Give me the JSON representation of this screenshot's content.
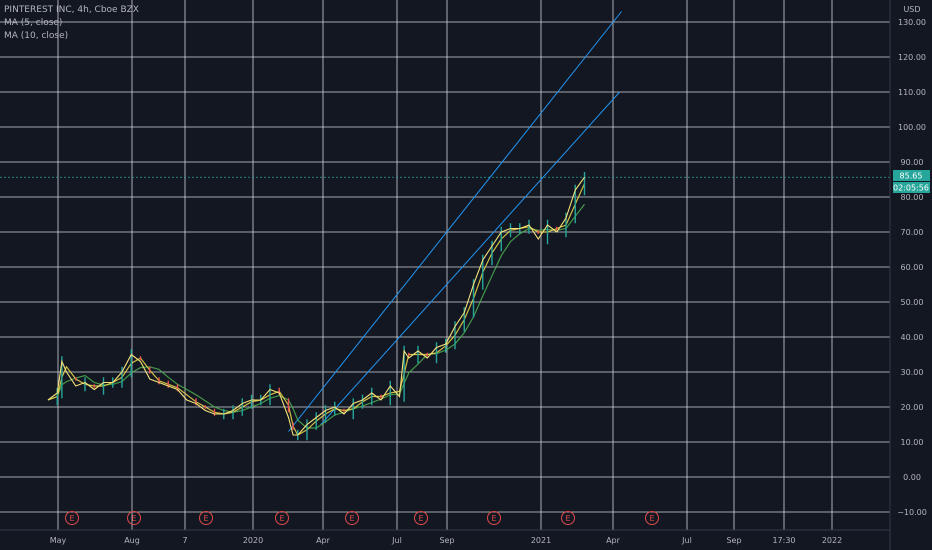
{
  "legend": {
    "symbol_line": "PINTEREST INC, 4h, Cboe BZX",
    "ma5_line": "MA (5, close)",
    "ma10_line": "MA (10, close)"
  },
  "currency": "USD",
  "last_price": "85.65",
  "countdown": "02:05:56",
  "earnings_marker": "E",
  "colors": {
    "background": "#131722",
    "grid": "#e6e8ec",
    "channel": "#2196f3",
    "price_line": "#f6e27a",
    "ma_fast": "#e8d34a",
    "ma_slow": "#4caf50",
    "up": "#26a69a",
    "down": "#ef5350",
    "tag": "#26a69a"
  },
  "chart_data": {
    "type": "line",
    "title": "PINTEREST INC, 4h, Cboe BZX",
    "y_axis": {
      "unit": "USD",
      "range": [
        -13,
        133
      ],
      "ticks": [
        "130.00",
        "120.00",
        "110.00",
        "100.00",
        "90.00",
        "80.00",
        "70.00",
        "60.00",
        "50.00",
        "40.00",
        "30.00",
        "20.00",
        "10.00",
        "0.00",
        "−10.00"
      ]
    },
    "x_axis": {
      "ticks": [
        "May",
        "Aug",
        "7",
        "2020",
        "Apr",
        "Jul",
        "Sep",
        "2021",
        "Apr",
        "Jul",
        "Sep",
        "17:30",
        "2022"
      ]
    },
    "series": [
      {
        "name": "PINTEREST INC",
        "points": [
          [
            0,
            22
          ],
          [
            1,
            24
          ],
          [
            1.5,
            33
          ],
          [
            2,
            30
          ],
          [
            3,
            26
          ],
          [
            4,
            27
          ],
          [
            5,
            25
          ],
          [
            6,
            27
          ],
          [
            7,
            27
          ],
          [
            8,
            30
          ],
          [
            9,
            35
          ],
          [
            10,
            33
          ],
          [
            11,
            28
          ],
          [
            12,
            27
          ],
          [
            13,
            26
          ],
          [
            14,
            25
          ],
          [
            15,
            22
          ],
          [
            16,
            21
          ],
          [
            17,
            19
          ],
          [
            18,
            18
          ],
          [
            19,
            18
          ],
          [
            20,
            19
          ],
          [
            21,
            21
          ],
          [
            22,
            22
          ],
          [
            23,
            22
          ],
          [
            24,
            25
          ],
          [
            25,
            24
          ],
          [
            26,
            17
          ],
          [
            26.5,
            12
          ],
          [
            27,
            12
          ],
          [
            28,
            15
          ],
          [
            29,
            17
          ],
          [
            30,
            19
          ],
          [
            31,
            20
          ],
          [
            32,
            18
          ],
          [
            33,
            21
          ],
          [
            34,
            22
          ],
          [
            35,
            24
          ],
          [
            36,
            22
          ],
          [
            37,
            26
          ],
          [
            38,
            23
          ],
          [
            38.5,
            36
          ],
          [
            39,
            34
          ],
          [
            40,
            36
          ],
          [
            41,
            34
          ],
          [
            42,
            37
          ],
          [
            43,
            38
          ],
          [
            44,
            43
          ],
          [
            45,
            47
          ],
          [
            46,
            55
          ],
          [
            47,
            62
          ],
          [
            48,
            66
          ],
          [
            49,
            70
          ],
          [
            50,
            71
          ],
          [
            51,
            71
          ],
          [
            52,
            72
          ],
          [
            53,
            68
          ],
          [
            54,
            72
          ],
          [
            55,
            70
          ],
          [
            56,
            74
          ],
          [
            57,
            82
          ],
          [
            58,
            85.65
          ]
        ]
      },
      {
        "name": "MA (5, close)"
      },
      {
        "name": "MA (10, close)"
      }
    ],
    "channel": {
      "upper": [
        [
          26,
          13
        ],
        [
          62,
          133
        ]
      ],
      "lower": [
        [
          29.5,
          15
        ],
        [
          61.8,
          110
        ]
      ]
    },
    "earnings_events": [
      "E",
      "E",
      "E",
      "E",
      "E",
      "E",
      "E",
      "E",
      "E"
    ]
  }
}
